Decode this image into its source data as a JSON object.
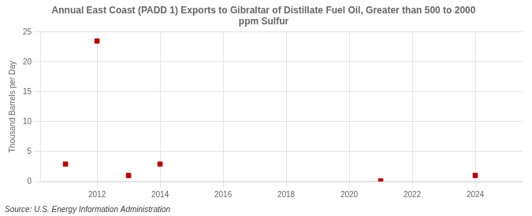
{
  "chart_data": {
    "type": "scatter",
    "title": "Annual East Coast (PADD 1) Exports to Gibraltar of Distillate Fuel Oil, Greater than 500 to 2000\nppm Sulfur",
    "ylabel": "Thousand Barrels per Day",
    "source": "Source: U.S. Energy Information Administration",
    "x": [
      2011,
      2012,
      2013,
      2014,
      2021,
      2024
    ],
    "values": [
      2.9,
      23.5,
      1.0,
      2.9,
      0.1,
      1.0
    ],
    "color": "#c00000",
    "marker": "square",
    "xlim": [
      2010.2,
      2025.5
    ],
    "xticks": [
      2012,
      2014,
      2016,
      2018,
      2020,
      2022,
      2024
    ],
    "ylim": [
      0,
      25
    ],
    "yticks": [
      0,
      5,
      10,
      15,
      20,
      25
    ],
    "grid": true
  }
}
